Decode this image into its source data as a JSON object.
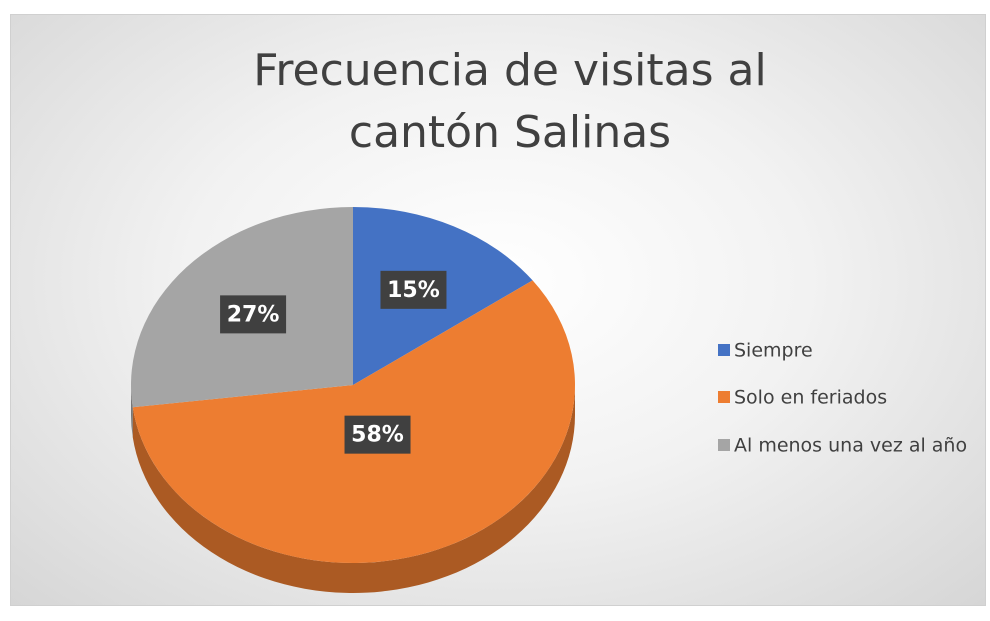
{
  "chart_data": {
    "type": "pie",
    "title": "Frecuencia de visitas al cantón Salinas",
    "categories": [
      "Siempre",
      "Solo en feriados",
      "Al menos una vez al año"
    ],
    "values": [
      15,
      58,
      27
    ],
    "value_labels": [
      "15%",
      "58%",
      "27%"
    ],
    "colors": [
      "#4472c4",
      "#ed7d31",
      "#a5a5a5"
    ],
    "legend": "right"
  }
}
